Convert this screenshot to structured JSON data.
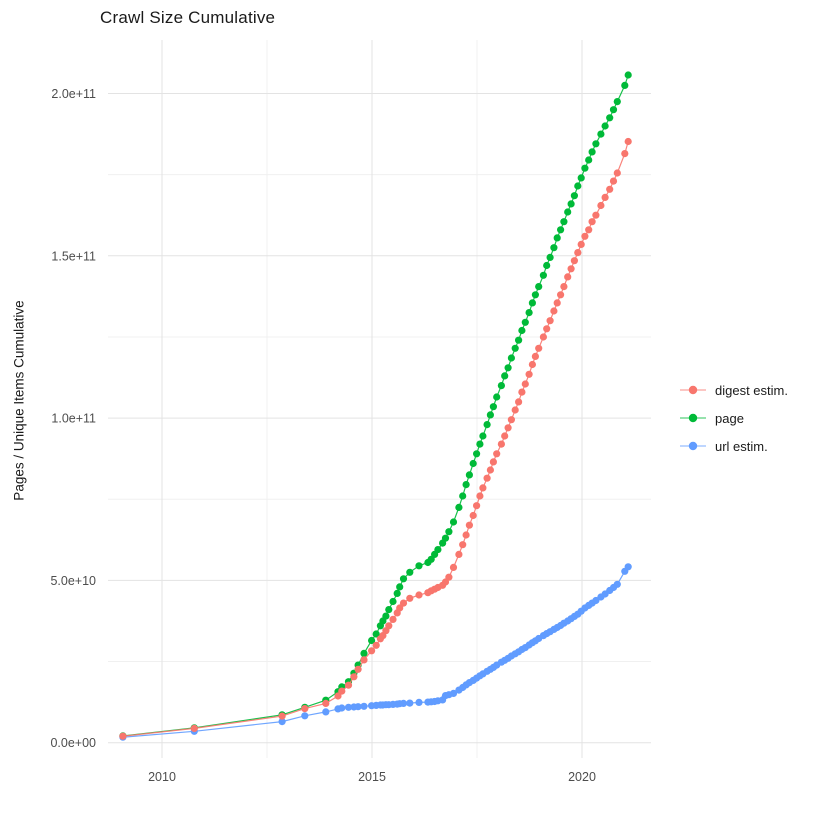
{
  "chart_data": {
    "type": "line",
    "title": "Crawl Size Cumulative",
    "xlabel": "",
    "ylabel": "Pages / Unique Items Cumulative",
    "legend_position": "right",
    "grid": true,
    "background": "#ffffff",
    "gridline_major_color": "#e3e3e3",
    "gridline_minor_color": "#f0f0f0",
    "axis_text_color": "#4d4d4d",
    "y_unit_multiplier": 1000000000,
    "xlim": [
      2008.6,
      2021.75
    ],
    "ylim_billions": [
      -6,
      217
    ],
    "x_ticks": [
      {
        "value": 2010,
        "label": "2010"
      },
      {
        "value": 2015,
        "label": "2015"
      },
      {
        "value": 2020,
        "label": "2020"
      }
    ],
    "x_minor_ticks": [
      2012.5,
      2017.5
    ],
    "y_ticks": [
      {
        "value": 0,
        "label": "0.0e+00"
      },
      {
        "value": 50,
        "label": "5.0e+10"
      },
      {
        "value": 100,
        "label": "1.0e+11"
      },
      {
        "value": 150,
        "label": "1.5e+11"
      },
      {
        "value": 200,
        "label": "2.0e+11"
      }
    ],
    "y_minor_ticks": [
      25,
      75,
      125,
      175
    ],
    "x": [
      2009.07,
      2010.77,
      2012.86,
      2013.4,
      2013.9,
      2014.19,
      2014.28,
      2014.44,
      2014.57,
      2014.67,
      2014.81,
      2014.99,
      2015.1,
      2015.2,
      2015.26,
      2015.33,
      2015.4,
      2015.5,
      2015.6,
      2015.66,
      2015.75,
      2015.9,
      2016.12,
      2016.33,
      2016.41,
      2016.49,
      2016.57,
      2016.68,
      2016.75,
      2016.83,
      2016.94,
      2017.07,
      2017.16,
      2017.24,
      2017.32,
      2017.41,
      2017.49,
      2017.57,
      2017.64,
      2017.74,
      2017.82,
      2017.89,
      2017.97,
      2018.08,
      2018.16,
      2018.24,
      2018.32,
      2018.41,
      2018.49,
      2018.57,
      2018.65,
      2018.74,
      2018.82,
      2018.89,
      2018.97,
      2019.08,
      2019.16,
      2019.24,
      2019.33,
      2019.41,
      2019.49,
      2019.57,
      2019.66,
      2019.74,
      2019.82,
      2019.9,
      2019.98,
      2020.07,
      2020.16,
      2020.24,
      2020.33,
      2020.45,
      2020.55,
      2020.66,
      2020.75,
      2020.84,
      2021.02,
      2021.1
    ],
    "series": [
      {
        "name": "digest estim.",
        "color": "#F8766D",
        "values_billions": [
          2.0,
          4.4,
          8.2,
          10.5,
          12.1,
          14.4,
          15.9,
          17.7,
          20.3,
          22.6,
          25.5,
          28.3,
          30.0,
          32.0,
          33.0,
          34.5,
          36.0,
          38.0,
          40.0,
          41.5,
          43.0,
          44.5,
          45.5,
          46.2,
          46.8,
          47.3,
          47.8,
          48.5,
          49.5,
          51.0,
          54.0,
          58.0,
          61.0,
          64.0,
          67.0,
          70.0,
          73.0,
          76.0,
          78.5,
          81.5,
          84.0,
          86.5,
          89.0,
          92.0,
          94.5,
          97.0,
          99.5,
          102.5,
          105.0,
          108.0,
          110.5,
          113.5,
          116.5,
          119.0,
          121.5,
          125.0,
          127.5,
          130.0,
          133.0,
          135.5,
          138.0,
          140.5,
          143.5,
          146.0,
          148.5,
          151.0,
          153.5,
          156.0,
          158.0,
          160.5,
          162.5,
          165.5,
          168.0,
          170.5,
          173.0,
          175.5,
          181.5,
          185.2
        ]
      },
      {
        "name": "page",
        "color": "#00BA38",
        "values_billions": [
          2.1,
          4.6,
          8.6,
          10.9,
          13.1,
          15.7,
          17.2,
          18.8,
          21.4,
          23.9,
          27.5,
          31.5,
          33.5,
          36.0,
          37.5,
          39.0,
          41.0,
          43.5,
          46.0,
          48.0,
          50.5,
          52.5,
          54.5,
          55.5,
          56.5,
          58.0,
          59.5,
          61.5,
          63.0,
          65.0,
          68.0,
          72.5,
          76.0,
          79.5,
          82.5,
          86.0,
          89.0,
          92.0,
          94.5,
          98.0,
          101.0,
          103.5,
          106.5,
          110.0,
          113.0,
          115.5,
          118.5,
          121.5,
          124.0,
          127.0,
          129.5,
          132.5,
          135.5,
          138.0,
          140.5,
          144.0,
          147.0,
          149.5,
          152.5,
          155.5,
          158.0,
          160.5,
          163.5,
          166.0,
          168.5,
          171.5,
          174.0,
          177.0,
          179.5,
          182.0,
          184.5,
          187.5,
          190.0,
          192.5,
          195.0,
          197.5,
          202.5,
          205.7
        ]
      },
      {
        "name": "url estim.",
        "color": "#619CFF",
        "values_billions": [
          1.7,
          3.5,
          6.5,
          8.3,
          9.5,
          10.4,
          10.7,
          10.9,
          11.0,
          11.1,
          11.2,
          11.4,
          11.5,
          11.6,
          11.6,
          11.7,
          11.7,
          11.8,
          11.9,
          12.0,
          12.1,
          12.2,
          12.4,
          12.5,
          12.6,
          12.7,
          12.9,
          13.2,
          14.5,
          14.8,
          15.2,
          16.2,
          17.0,
          17.8,
          18.5,
          19.2,
          19.9,
          20.6,
          21.2,
          22.0,
          22.6,
          23.2,
          23.9,
          24.8,
          25.4,
          26.0,
          26.7,
          27.4,
          28.0,
          28.7,
          29.3,
          30.1,
          30.8,
          31.4,
          32.1,
          33.0,
          33.6,
          34.2,
          34.9,
          35.5,
          36.1,
          36.8,
          37.5,
          38.2,
          38.9,
          39.6,
          40.5,
          41.5,
          42.3,
          43.0,
          43.8,
          44.9,
          45.8,
          46.9,
          47.8,
          48.8,
          52.8,
          54.2
        ]
      }
    ],
    "draw_order": [
      1,
      2,
      0
    ]
  }
}
